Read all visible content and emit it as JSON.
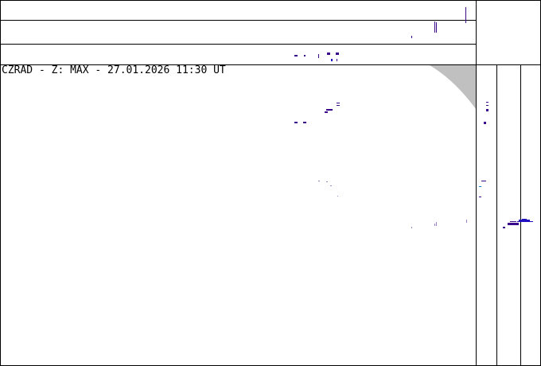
{
  "title": "CZRAD - Z: MAX - 27.01.2026 11:30 UT",
  "colors": {
    "echo": "#3a0a8a",
    "echo_blue": "#2010c0",
    "echo_cyan": "#1080c0",
    "no_coverage": "#c0c0c0",
    "frame": "#000000"
  }
}
